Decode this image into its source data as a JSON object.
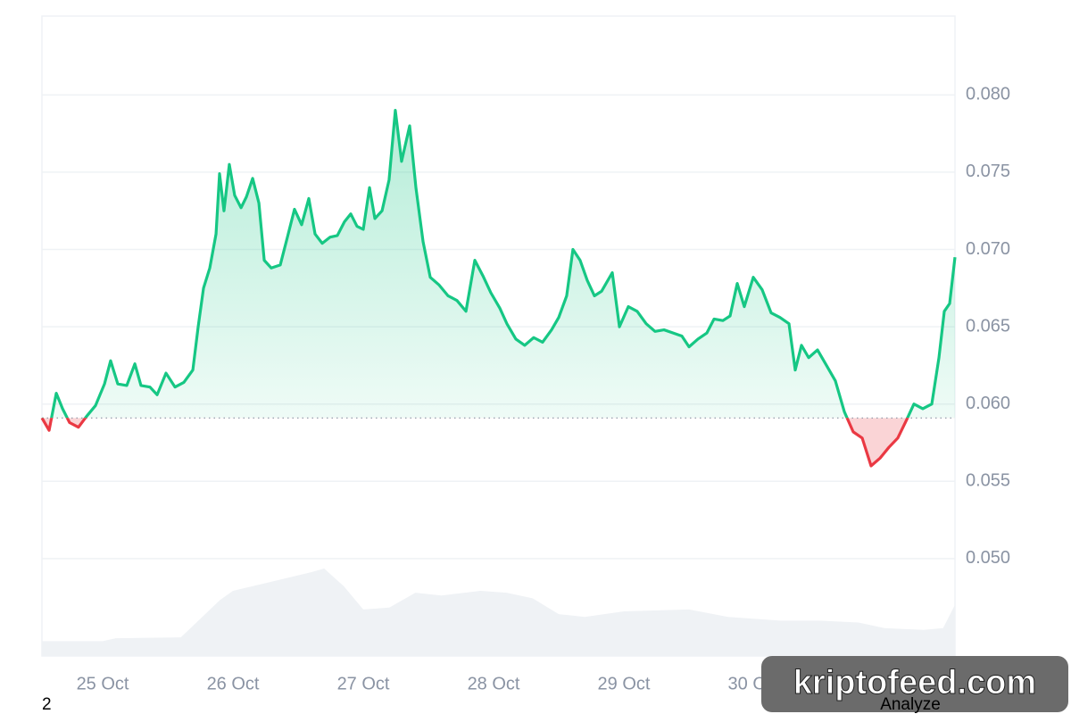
{
  "chart_data": {
    "type": "line",
    "x": [
      24.534,
      24.589,
      24.644,
      24.692,
      24.746,
      24.814,
      24.876,
      24.945,
      25.014,
      25.061,
      25.116,
      25.185,
      25.247,
      25.294,
      25.363,
      25.418,
      25.486,
      25.555,
      25.623,
      25.692,
      25.733,
      25.774,
      25.822,
      25.87,
      25.897,
      25.931,
      25.972,
      26.013,
      26.062,
      26.103,
      26.151,
      26.199,
      26.24,
      26.294,
      26.363,
      26.418,
      26.472,
      26.527,
      26.582,
      26.63,
      26.685,
      26.746,
      26.801,
      26.856,
      26.904,
      26.952,
      27.0,
      27.048,
      27.089,
      27.144,
      27.198,
      27.246,
      27.294,
      27.356,
      27.404,
      27.459,
      27.514,
      27.582,
      27.651,
      27.719,
      27.788,
      27.856,
      27.918,
      27.979,
      28.048,
      28.102,
      28.171,
      28.239,
      28.308,
      28.376,
      28.445,
      28.5,
      28.561,
      28.609,
      28.664,
      28.719,
      28.774,
      28.829,
      28.911,
      28.966,
      29.034,
      29.102,
      29.171,
      29.239,
      29.308,
      29.376,
      29.445,
      29.5,
      29.568,
      29.637,
      29.692,
      29.76,
      29.815,
      29.87,
      29.924,
      29.993,
      30.061,
      30.13,
      30.198,
      30.267,
      30.315,
      30.363,
      30.418,
      30.486,
      30.555,
      30.623,
      30.692,
      30.76,
      30.829,
      30.897,
      30.966,
      31.034,
      31.102,
      31.171,
      31.226,
      31.294,
      31.363,
      31.418,
      31.459,
      31.5,
      31.541
    ],
    "values": [
      0.0591,
      0.0583,
      0.0607,
      0.0597,
      0.0588,
      0.0585,
      0.0592,
      0.0599,
      0.0613,
      0.0628,
      0.0613,
      0.0612,
      0.0626,
      0.0612,
      0.0611,
      0.0606,
      0.062,
      0.0611,
      0.0614,
      0.0622,
      0.065,
      0.0675,
      0.0688,
      0.071,
      0.0749,
      0.0725,
      0.0755,
      0.0735,
      0.0727,
      0.0734,
      0.0746,
      0.073,
      0.0693,
      0.0688,
      0.069,
      0.0708,
      0.0726,
      0.0716,
      0.0733,
      0.071,
      0.0704,
      0.0708,
      0.0709,
      0.0718,
      0.0723,
      0.0715,
      0.0713,
      0.074,
      0.072,
      0.0725,
      0.0745,
      0.079,
      0.0757,
      0.078,
      0.074,
      0.0705,
      0.0682,
      0.0677,
      0.067,
      0.0667,
      0.066,
      0.0693,
      0.0683,
      0.0672,
      0.0662,
      0.0652,
      0.0642,
      0.0638,
      0.0643,
      0.064,
      0.0648,
      0.0656,
      0.067,
      0.07,
      0.0693,
      0.068,
      0.067,
      0.0673,
      0.0685,
      0.065,
      0.0663,
      0.066,
      0.0652,
      0.0647,
      0.0648,
      0.0646,
      0.0644,
      0.0637,
      0.0642,
      0.0646,
      0.0655,
      0.0654,
      0.0657,
      0.0678,
      0.0663,
      0.0682,
      0.0674,
      0.0659,
      0.0656,
      0.0652,
      0.0622,
      0.0638,
      0.063,
      0.0635,
      0.0625,
      0.0615,
      0.0595,
      0.0582,
      0.0578,
      0.056,
      0.0565,
      0.0572,
      0.0578,
      0.059,
      0.06,
      0.0597,
      0.06,
      0.063,
      0.066,
      0.0665,
      0.0695
    ],
    "baseline": 0.0591,
    "colors": {
      "up": "#16c784",
      "down": "#ea3943",
      "volume": "#eff2f5"
    },
    "xlim": [
      24.534,
      31.541
    ],
    "xticks": [
      {
        "value": 25,
        "label": "25 Oct"
      },
      {
        "value": 26,
        "label": "26 Oct"
      },
      {
        "value": 27,
        "label": "27 Oct"
      },
      {
        "value": 28,
        "label": "28 Oct"
      },
      {
        "value": 29,
        "label": "29 Oct"
      },
      {
        "value": 30,
        "label": "30 Oct"
      }
    ],
    "ylim": [
      0.0437,
      0.0851
    ],
    "yticks": [
      {
        "value": 0.05,
        "label": "0.050"
      },
      0.055,
      {
        "value": 0.06,
        "label": "0.060"
      },
      0.065,
      {
        "value": 0.07,
        "label": "0.070"
      },
      0.075,
      {
        "value": 0.08,
        "label": "0.080"
      }
    ],
    "grid": true,
    "volume": {
      "x": [
        24.534,
        25.0,
        25.1,
        25.6,
        25.75,
        25.9,
        26.0,
        26.3,
        26.6,
        26.7,
        26.85,
        27.0,
        27.2,
        27.4,
        27.6,
        27.9,
        28.1,
        28.3,
        28.5,
        28.7,
        29.0,
        29.5,
        29.8,
        30.2,
        30.5,
        30.8,
        31.0,
        31.3,
        31.45,
        31.541
      ],
      "values": [
        16,
        16,
        19,
        20,
        40,
        60,
        70,
        80,
        90,
        94,
        75,
        50,
        52,
        68,
        65,
        70,
        68,
        62,
        45,
        42,
        48,
        50,
        42,
        38,
        38,
        36,
        30,
        28,
        30,
        55
      ],
      "lim": [
        0,
        110
      ]
    }
  },
  "footer": {
    "left": "2",
    "right": "Analyze",
    "watermark": "kriptofeed.com"
  }
}
